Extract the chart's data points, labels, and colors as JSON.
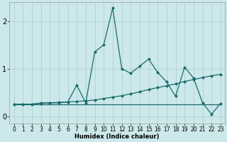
{
  "xlabel": "Humidex (Indice chaleur)",
  "bg_color": "#cce8ea",
  "grid_color": "#aacccc",
  "line_color": "#1a6b6b",
  "xlim": [
    -0.5,
    23.5
  ],
  "ylim": [
    -0.15,
    2.4
  ],
  "yticks": [
    0,
    1,
    2
  ],
  "xticks": [
    0,
    1,
    2,
    3,
    4,
    5,
    6,
    7,
    8,
    9,
    10,
    11,
    12,
    13,
    14,
    15,
    16,
    17,
    18,
    19,
    20,
    21,
    22,
    23
  ],
  "line1_x": [
    0,
    1,
    2,
    3,
    4,
    5,
    6,
    7,
    8,
    9,
    10,
    11,
    12,
    13,
    14,
    15,
    16,
    17,
    18,
    19,
    20,
    21,
    22,
    23
  ],
  "line1_y": [
    0.25,
    0.25,
    0.25,
    0.28,
    0.28,
    0.28,
    0.3,
    0.65,
    0.28,
    1.35,
    1.5,
    2.27,
    1.0,
    0.9,
    1.05,
    1.2,
    0.92,
    0.72,
    0.42,
    1.03,
    0.8,
    0.28,
    0.04,
    0.27
  ],
  "line2_x": [
    0,
    1,
    2,
    3,
    4,
    5,
    6,
    7,
    8,
    9,
    10,
    11,
    12,
    13,
    14,
    15,
    16,
    17,
    18,
    19,
    20,
    21,
    22,
    23
  ],
  "line2_y": [
    0.25,
    0.25,
    0.25,
    0.27,
    0.28,
    0.29,
    0.3,
    0.31,
    0.32,
    0.34,
    0.37,
    0.4,
    0.43,
    0.47,
    0.51,
    0.56,
    0.6,
    0.64,
    0.68,
    0.73,
    0.77,
    0.81,
    0.85,
    0.88
  ],
  "line3_x": [
    0,
    23
  ],
  "line3_y": [
    0.25,
    0.25
  ],
  "markersize": 2.5,
  "linewidth": 0.9
}
